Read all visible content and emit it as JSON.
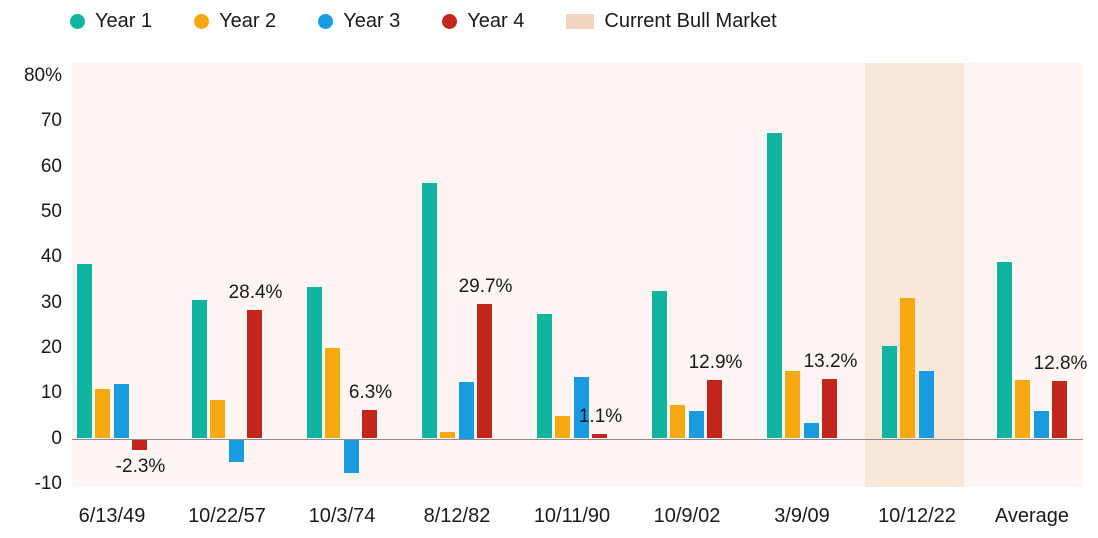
{
  "legend": {
    "items": [
      {
        "label": "Year 1",
        "marker": "circle",
        "color": "#10b5a0",
        "icon": "year1-dot-icon"
      },
      {
        "label": "Year 2",
        "marker": "circle",
        "color": "#f6a90e",
        "icon": "year2-dot-icon"
      },
      {
        "label": "Year 3",
        "marker": "circle",
        "color": "#189be0",
        "icon": "year3-dot-icon"
      },
      {
        "label": "Year 4",
        "marker": "circle",
        "color": "#c2261c",
        "icon": "year4-dot-icon"
      },
      {
        "label": "Current Bull Market",
        "marker": "square",
        "color": "#f0d5c0",
        "icon": "current-bull-market-swatch-icon"
      }
    ]
  },
  "chart_data": {
    "type": "bar",
    "categories": [
      "6/13/49",
      "10/22/57",
      "10/3/74",
      "8/12/82",
      "10/11/90",
      "10/9/02",
      "3/9/09",
      "10/12/22",
      "Average"
    ],
    "series": [
      {
        "name": "Year 1",
        "color": "#10b5a0",
        "values": [
          38.5,
          30.5,
          33.5,
          56.5,
          27.5,
          32.5,
          67.5,
          20.5,
          39
        ]
      },
      {
        "name": "Year 2",
        "color": "#f6a90e",
        "values": [
          11,
          8.5,
          20,
          1.5,
          5,
          7.5,
          15,
          31,
          13
        ]
      },
      {
        "name": "Year 3",
        "color": "#189be0",
        "values": [
          12,
          -5,
          -7.5,
          12.5,
          13.5,
          6,
          3.5,
          15,
          6
        ]
      },
      {
        "name": "Year 4",
        "color": "#c2261c",
        "values": [
          -2.3,
          28.4,
          6.3,
          29.7,
          1.1,
          12.9,
          13.2,
          null,
          12.8
        ]
      }
    ],
    "annotations": [
      {
        "category_index": 0,
        "series": "Year 4",
        "text": "-2.3%",
        "placement": "below"
      },
      {
        "category_index": 1,
        "series": "Year 4",
        "text": "28.4%",
        "placement": "above"
      },
      {
        "category_index": 2,
        "series": "Year 4",
        "text": "6.3%",
        "placement": "above"
      },
      {
        "category_index": 3,
        "series": "Year 4",
        "text": "29.7%",
        "placement": "above"
      },
      {
        "category_index": 4,
        "series": "Year 4",
        "text": "1.1%",
        "placement": "above"
      },
      {
        "category_index": 5,
        "series": "Year 4",
        "text": "12.9%",
        "placement": "above"
      },
      {
        "category_index": 6,
        "series": "Year 4",
        "text": "13.2%",
        "placement": "above"
      },
      {
        "category_index": 8,
        "series": "Year 4",
        "text": "12.8%",
        "placement": "above"
      }
    ],
    "highlight_band": {
      "label": "Current Bull Market",
      "category": "10/12/22",
      "category_index": 7,
      "color": "#f8e7da"
    },
    "ylim": [
      -10,
      80
    ],
    "yticks": {
      "values": [
        80,
        70,
        60,
        50,
        40,
        30,
        20,
        10,
        0,
        -10
      ],
      "labels": [
        "80%",
        "70",
        "60",
        "50",
        "40",
        "30",
        "20",
        "10",
        "0",
        "-10"
      ]
    },
    "grid": false,
    "legend_position": "top",
    "plot_bg": "#fdf6f3",
    "axis_line_color": "#8c8c8c",
    "title": "",
    "xlabel": "",
    "ylabel": ""
  }
}
